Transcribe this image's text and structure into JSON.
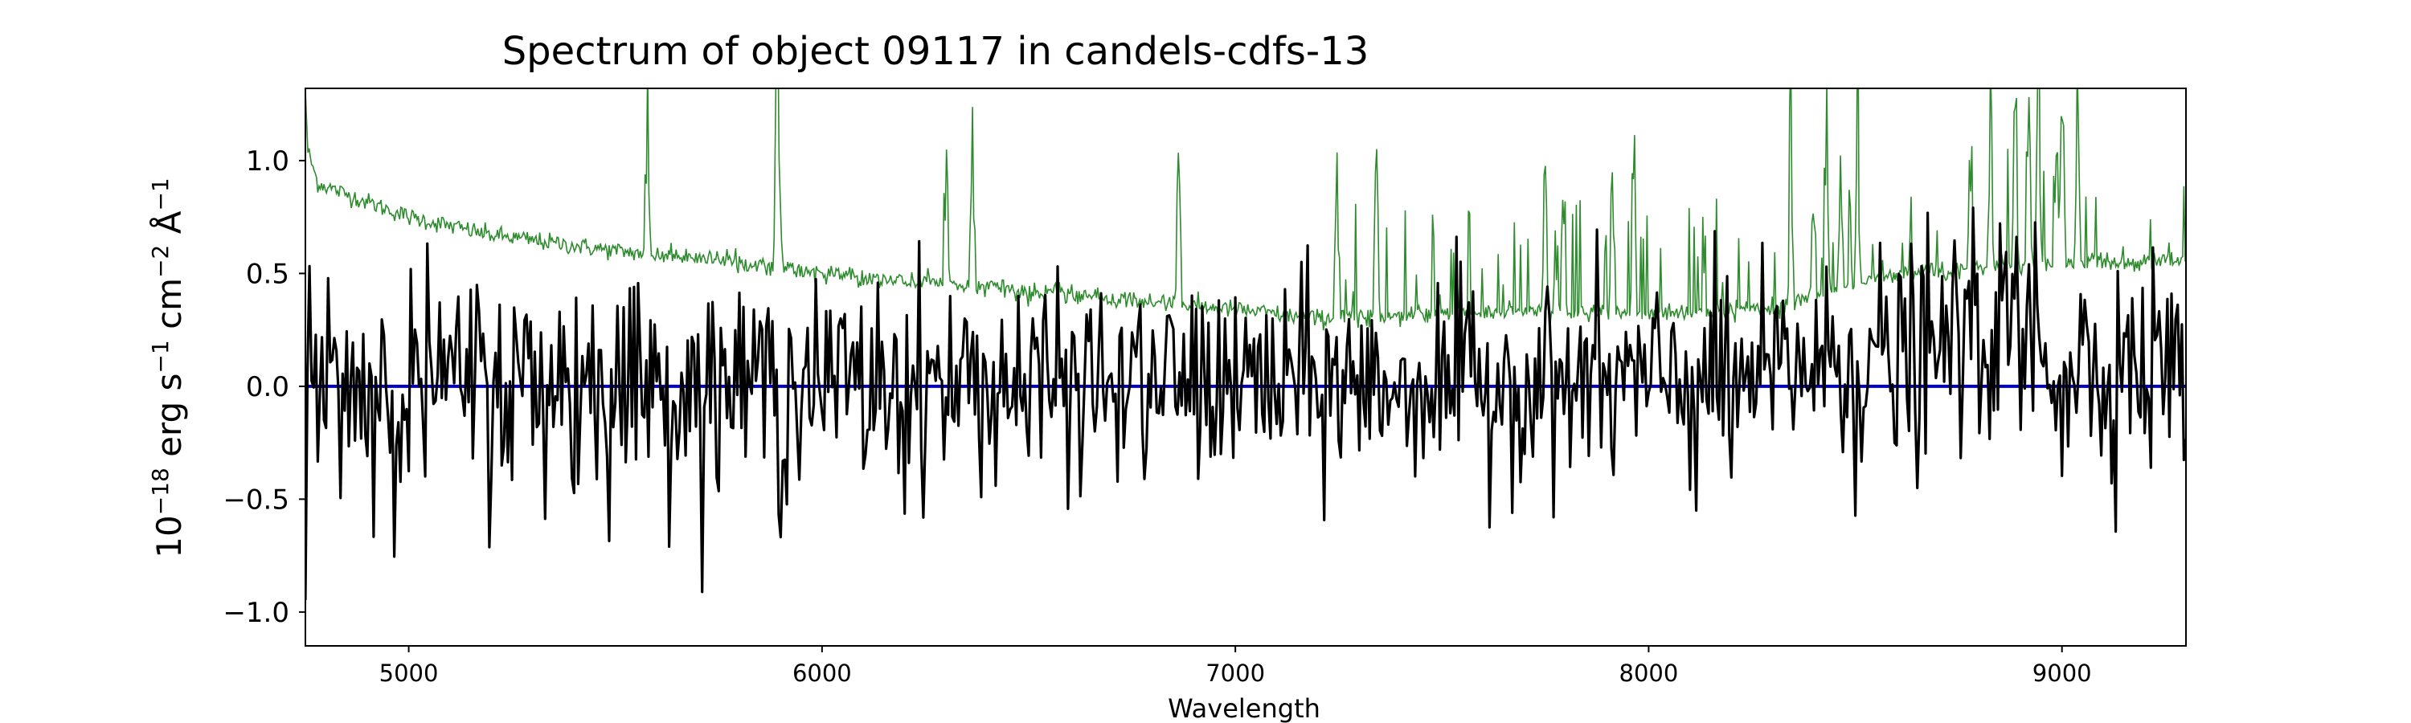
{
  "chart_data": {
    "type": "line",
    "title": "Spectrum of object 09117 in candels-cdfs-13",
    "xlabel": "Wavelength",
    "ylabel": {
      "base": "10",
      "exp1": "−18",
      "erg": " erg s",
      "exp2": "−1",
      "cm": " cm",
      "exp3": "−2",
      "ang": " Å",
      "exp4": "−1"
    },
    "xlim": [
      4750,
      9300
    ],
    "ylim": [
      -1.15,
      1.32
    ],
    "xticks": [
      5000,
      6000,
      7000,
      8000,
      9000
    ],
    "yticks": [
      1.0,
      0.5,
      0.0,
      -0.5,
      -1.0
    ],
    "xtick_labels": [
      "5000",
      "6000",
      "7000",
      "8000",
      "9000"
    ],
    "ytick_labels": [
      "1.0",
      "0.5",
      "0.0",
      "−0.5",
      "−1.0"
    ],
    "grid": false,
    "colors": {
      "flux": "#000000",
      "error": "#2e8b2e",
      "zero": "#0000cc"
    },
    "series": [
      {
        "role": "flux",
        "step": 5,
        "x_start": 4750,
        "x_end": 9300,
        "values": [
          0.0,
          -0.15,
          0.42,
          0.2,
          -0.3,
          0.55,
          0.05,
          -0.1,
          0.63,
          -0.35,
          -0.9,
          0.3,
          -0.2,
          -0.62,
          0.4,
          0.1,
          -0.25,
          0.58,
          0.0,
          0.32
        ]
      },
      {
        "role": "error",
        "anchors": [
          [
            4750,
            1.32
          ],
          [
            4755,
            1.05
          ],
          [
            4780,
            0.9
          ],
          [
            4850,
            0.85
          ],
          [
            5000,
            0.75
          ],
          [
            5200,
            0.67
          ],
          [
            5500,
            0.6
          ],
          [
            5800,
            0.55
          ],
          [
            6000,
            0.5
          ],
          [
            6500,
            0.42
          ],
          [
            7000,
            0.34
          ],
          [
            7200,
            0.3
          ],
          [
            7500,
            0.33
          ],
          [
            8000,
            0.32
          ],
          [
            8300,
            0.35
          ],
          [
            8600,
            0.5
          ],
          [
            9000,
            0.55
          ],
          [
            9300,
            0.55
          ]
        ],
        "noise": 0.02
      },
      {
        "role": "zero",
        "values": [
          0.0
        ]
      }
    ],
    "line_spikes": [
      5577,
      5890,
      5896,
      6300,
      6364,
      6863,
      7246,
      7341,
      7750,
      7794,
      7913,
      7964,
      8344,
      8399,
      8430,
      8465,
      8505,
      8778,
      8827,
      8886,
      8919,
      8943,
      8988,
      9001,
      9038
    ]
  }
}
